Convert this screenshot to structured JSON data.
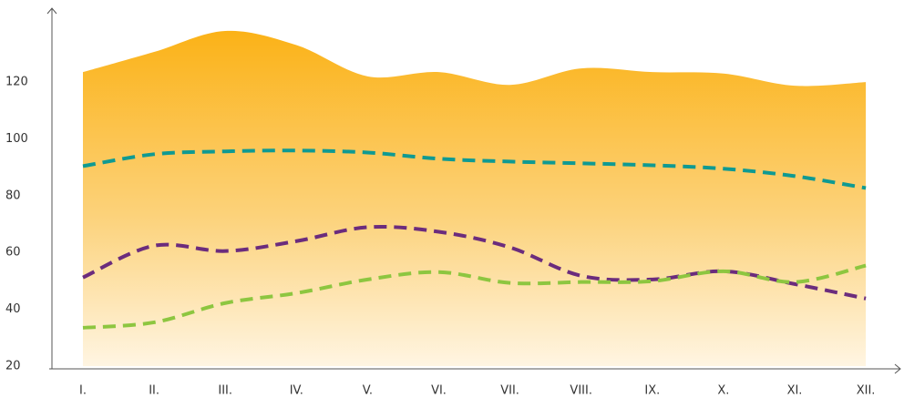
{
  "chart_data": {
    "type": "line",
    "categories": [
      "I.",
      "II.",
      "III.",
      "IV.",
      "V.",
      "VI.",
      "VII.",
      "VIII.",
      "IX.",
      "X.",
      "XI.",
      "XII."
    ],
    "series": [
      {
        "kind": "area",
        "color": "#fbb217",
        "values": [
          123.5,
          130.6,
          138,
          133,
          122,
          123.5,
          119,
          124.8,
          123.5,
          123,
          118.7,
          120
        ]
      },
      {
        "kind": "dashed",
        "color": "#0f9a92",
        "values": [
          90.4,
          94.6,
          95.6,
          95.9,
          95.2,
          93,
          92,
          91.4,
          90.7,
          89.5,
          86.9,
          82.7
        ]
      },
      {
        "kind": "dashed",
        "color": "#6b2c7d",
        "values": [
          51.2,
          62.4,
          60.5,
          64,
          68.9,
          67.3,
          61.8,
          51.8,
          50.5,
          53.4,
          48.9,
          43.8
        ]
      },
      {
        "kind": "dashed",
        "color": "#8dc640",
        "values": [
          33.5,
          35.4,
          42.2,
          45.7,
          50.5,
          53.1,
          49.3,
          49.6,
          49.9,
          53.4,
          49.6,
          55.4
        ]
      }
    ],
    "ylim": [
      20,
      146
    ],
    "yticks": [
      20,
      40,
      60,
      80,
      100,
      120
    ]
  }
}
